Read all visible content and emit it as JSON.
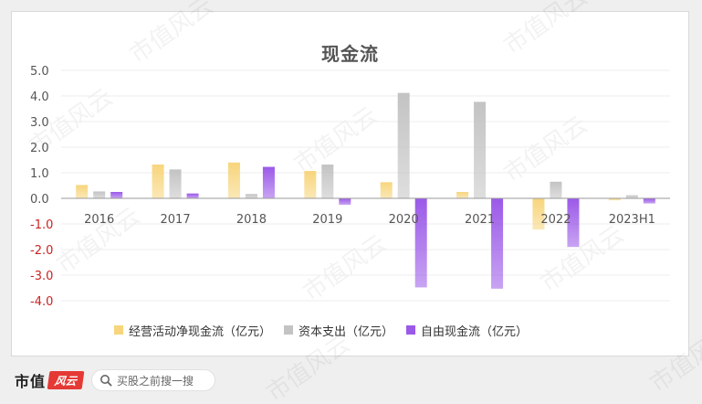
{
  "chart_data": {
    "type": "bar",
    "title": "现金流",
    "categories": [
      "2016",
      "2017",
      "2018",
      "2019",
      "2020",
      "2021",
      "2022",
      "2023H1"
    ],
    "series": [
      {
        "name": "经营活动净现金流（亿元）",
        "color": "#f7d57c",
        "values": [
          0.52,
          1.32,
          1.4,
          1.07,
          0.63,
          0.25,
          -1.22,
          -0.08
        ]
      },
      {
        "name": "资本支出（亿元）",
        "color": "#c3c3c3",
        "values": [
          0.27,
          1.13,
          0.17,
          1.32,
          4.12,
          3.77,
          0.65,
          0.12
        ]
      },
      {
        "name": "自由现金流（亿元）",
        "color": "#9b59e8",
        "values": [
          0.25,
          0.19,
          1.23,
          -0.25,
          -3.48,
          -3.53,
          -1.9,
          -0.2
        ]
      }
    ],
    "ylim": [
      -4.0,
      5.0
    ],
    "yticks": [
      "5.0",
      "4.0",
      "3.0",
      "2.0",
      "1.0",
      "0.0",
      "-1.0",
      "-2.0",
      "-3.0",
      "-4.0"
    ],
    "ytick_values": [
      5,
      4,
      3,
      2,
      1,
      0,
      -1,
      -2,
      -3,
      -4
    ],
    "grid": true,
    "legend_position": "bottom",
    "negative_tick_color": "#cc2222"
  },
  "footer": {
    "brand_name": "市值",
    "brand_logo_text": "风云",
    "search_placeholder": "买股之前搜一搜"
  },
  "watermark": "市值风云"
}
